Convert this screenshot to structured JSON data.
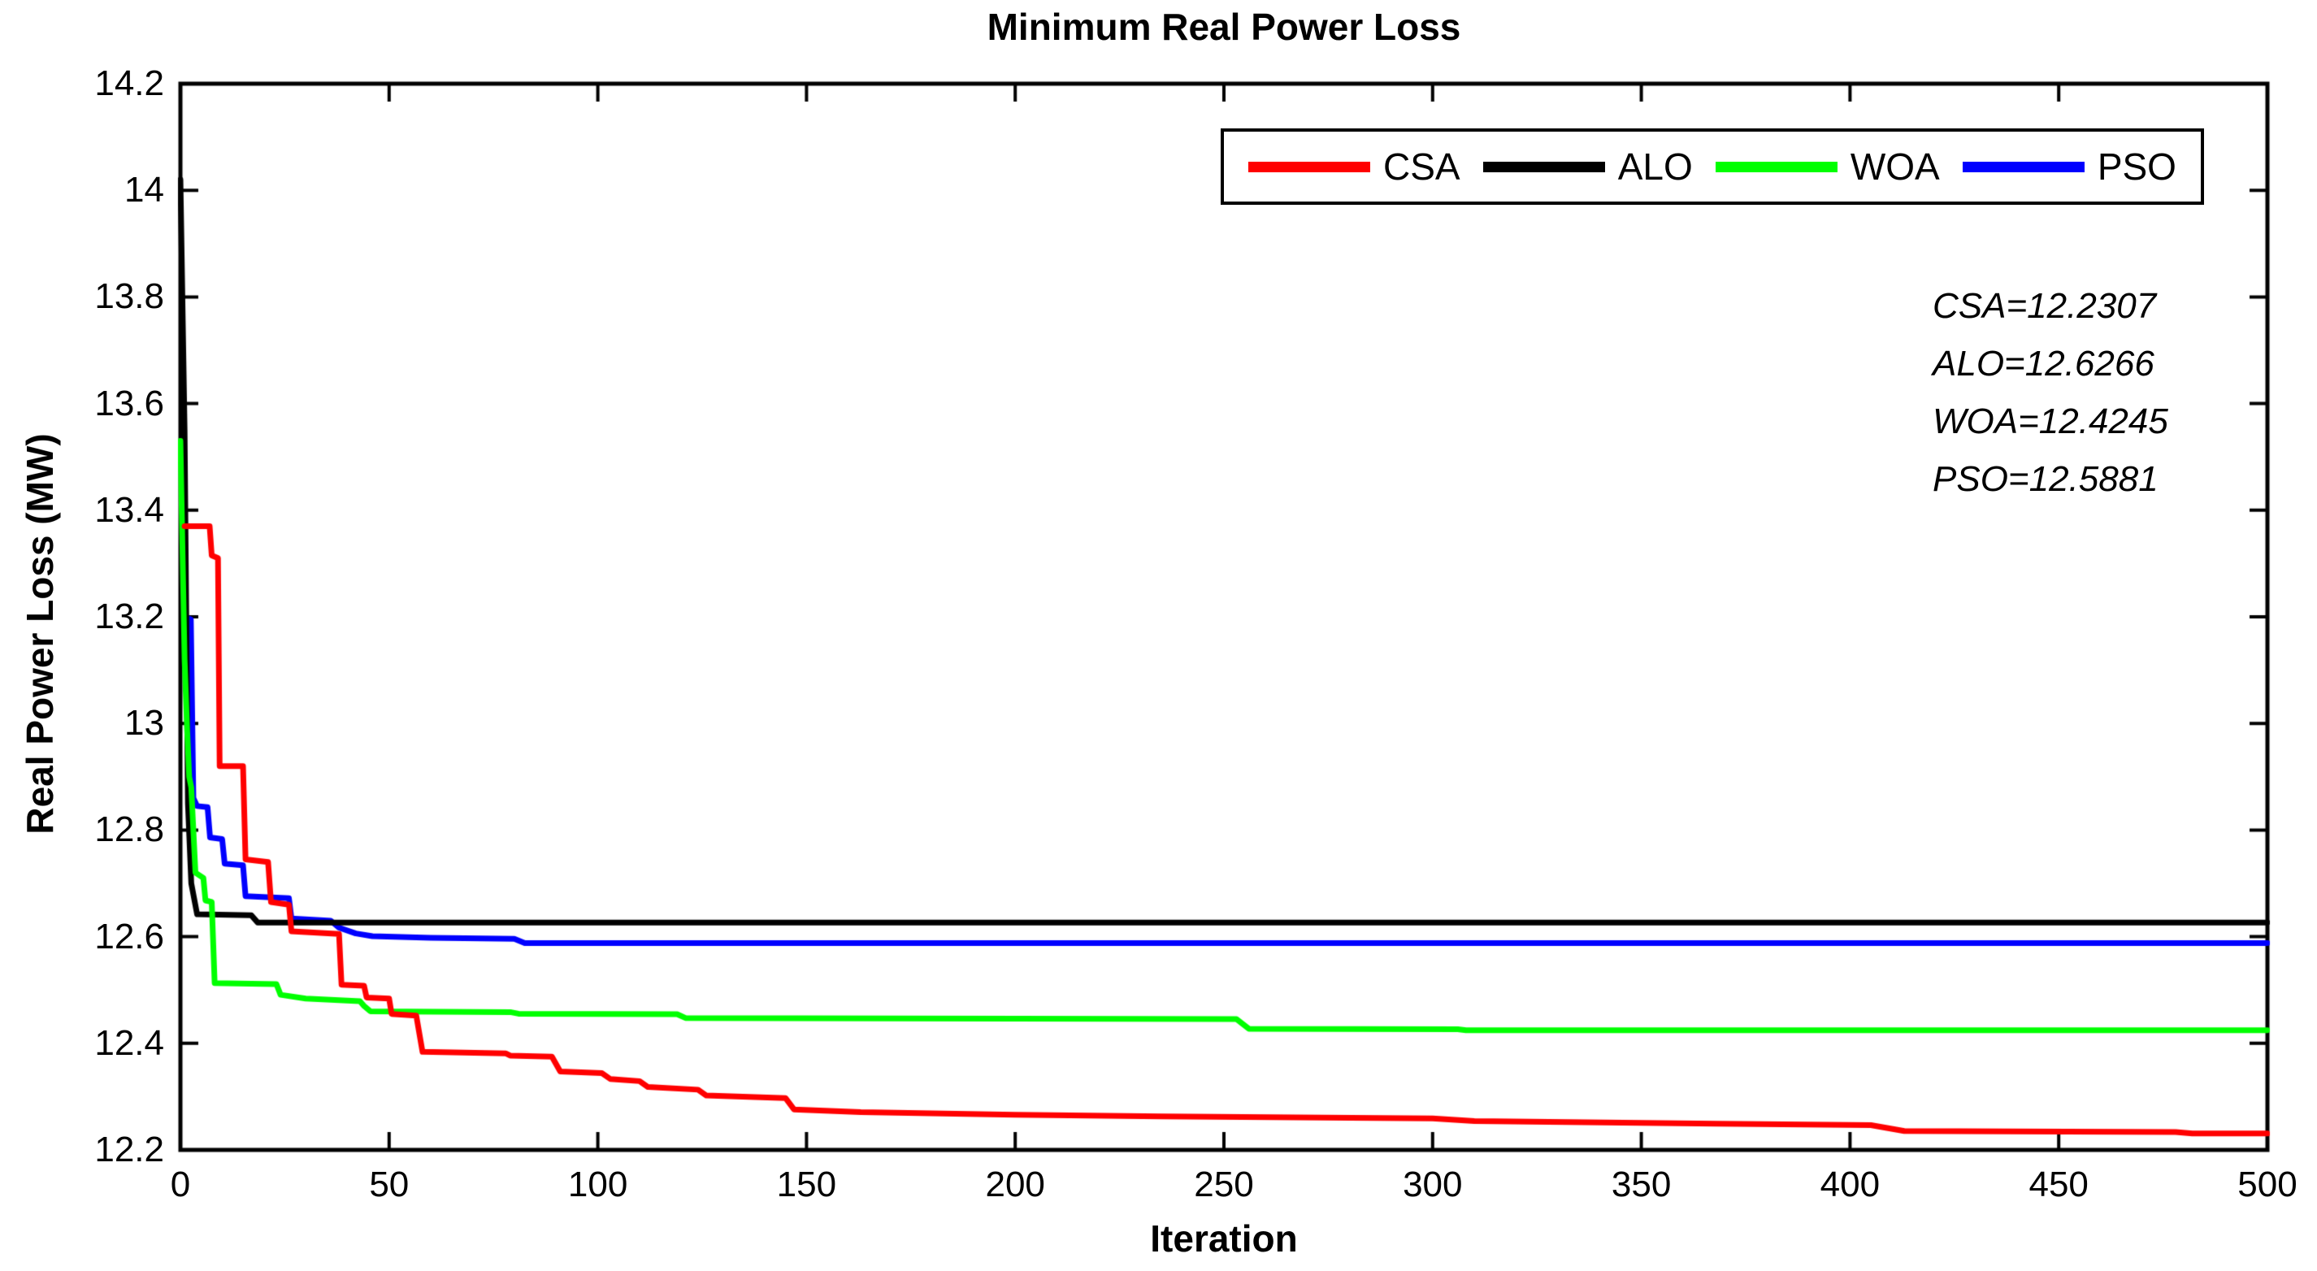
{
  "title": "Minimum Real Power Loss",
  "axes": {
    "xlabel": "Iteration",
    "ylabel": "Real Power Loss (MW)"
  },
  "annotation": {
    "lines": [
      "CSA=12.2307",
      "ALO=12.6266",
      "WOA=12.4245",
      "PSO=12.5881"
    ]
  },
  "chart_data": {
    "type": "line",
    "title": "Minimum Real Power Loss",
    "xlabel": "Iteration",
    "ylabel": "Real Power Loss (MW)",
    "xlim": [
      0,
      500
    ],
    "ylim": [
      12.2,
      14.2
    ],
    "grid": false,
    "legend_position": "top-right-inside",
    "x_ticks": [
      0,
      50,
      100,
      150,
      200,
      250,
      300,
      350,
      400,
      450,
      500
    ],
    "x_tick_labels": [
      "0",
      "50",
      "100",
      "150",
      "200",
      "250",
      "300",
      "350",
      "400",
      "450",
      "500"
    ],
    "y_ticks": [
      12.2,
      12.4,
      12.6,
      12.8,
      13.0,
      13.2,
      13.4,
      13.6,
      13.8,
      14.0,
      14.2
    ],
    "y_tick_labels": [
      "12.2",
      "12.4",
      "12.6",
      "12.8",
      "13",
      "13.2",
      "13.4",
      "13.6",
      "13.8",
      "14",
      "14.2"
    ],
    "line_width": 7,
    "draw_order": [
      "PSO",
      "ALO",
      "WOA",
      "CSA"
    ],
    "series": [
      {
        "name": "CSA",
        "color": "#ff0000",
        "final_value": 12.2307,
        "points": [
          [
            1,
            13.37
          ],
          [
            7,
            13.37
          ],
          [
            7.5,
            13.315
          ],
          [
            9,
            13.31
          ],
          [
            9.4,
            12.92
          ],
          [
            15,
            12.92
          ],
          [
            15.6,
            12.745
          ],
          [
            21,
            12.74
          ],
          [
            21.7,
            12.665
          ],
          [
            26,
            12.66
          ],
          [
            26.6,
            12.61
          ],
          [
            38,
            12.605
          ],
          [
            38.6,
            12.51
          ],
          [
            44,
            12.508
          ],
          [
            44.6,
            12.486
          ],
          [
            50,
            12.484
          ],
          [
            50.6,
            12.455
          ],
          [
            56.5,
            12.452
          ],
          [
            58,
            12.384
          ],
          [
            78,
            12.381
          ],
          [
            79,
            12.377
          ],
          [
            89,
            12.375
          ],
          [
            91,
            12.347
          ],
          [
            101,
            12.344
          ],
          [
            103,
            12.333
          ],
          [
            110,
            12.329
          ],
          [
            112,
            12.318
          ],
          [
            124,
            12.313
          ],
          [
            126,
            12.302
          ],
          [
            145,
            12.297
          ],
          [
            147,
            12.276
          ],
          [
            163,
            12.271
          ],
          [
            200,
            12.266
          ],
          [
            235,
            12.263
          ],
          [
            300,
            12.259
          ],
          [
            310,
            12.254
          ],
          [
            368,
            12.249
          ],
          [
            405,
            12.2465
          ],
          [
            413,
            12.2355
          ],
          [
            478,
            12.2335
          ],
          [
            482,
            12.2307
          ],
          [
            500,
            12.2307
          ]
        ]
      },
      {
        "name": "ALO",
        "color": "#000000",
        "final_value": 12.6266,
        "points": [
          [
            0,
            14.02
          ],
          [
            1,
            13.55
          ],
          [
            1.8,
            12.85
          ],
          [
            2.6,
            12.7
          ],
          [
            4,
            12.642
          ],
          [
            17,
            12.64
          ],
          [
            18.5,
            12.6266
          ],
          [
            500,
            12.6266
          ]
        ]
      },
      {
        "name": "WOA",
        "color": "#00ff00",
        "final_value": 12.4245,
        "points": [
          [
            0,
            13.53
          ],
          [
            1,
            13.12
          ],
          [
            1.6,
            12.99
          ],
          [
            2.1,
            12.9
          ],
          [
            2.6,
            12.88
          ],
          [
            3.6,
            12.72
          ],
          [
            5.5,
            12.71
          ],
          [
            6,
            12.668
          ],
          [
            7.5,
            12.665
          ],
          [
            8.2,
            12.513
          ],
          [
            23,
            12.511
          ],
          [
            24,
            12.491
          ],
          [
            30,
            12.484
          ],
          [
            43,
            12.479
          ],
          [
            44,
            12.47
          ],
          [
            45.5,
            12.46
          ],
          [
            79,
            12.4585
          ],
          [
            81,
            12.4555
          ],
          [
            119,
            12.4545
          ],
          [
            121,
            12.4475
          ],
          [
            253,
            12.4455
          ],
          [
            256,
            12.427
          ],
          [
            306,
            12.4265
          ],
          [
            308,
            12.4245
          ],
          [
            500,
            12.4245
          ]
        ]
      },
      {
        "name": "PSO",
        "color": "#0000ff",
        "final_value": 12.5881,
        "points": [
          [
            1,
            13.2
          ],
          [
            2.5,
            13.195
          ],
          [
            3.1,
            12.86
          ],
          [
            4,
            12.845
          ],
          [
            6.5,
            12.843
          ],
          [
            7.1,
            12.786
          ],
          [
            10,
            12.783
          ],
          [
            10.6,
            12.737
          ],
          [
            15,
            12.734
          ],
          [
            15.6,
            12.676
          ],
          [
            26,
            12.672
          ],
          [
            26.6,
            12.634
          ],
          [
            36,
            12.63
          ],
          [
            38,
            12.617
          ],
          [
            42,
            12.606
          ],
          [
            46,
            12.601
          ],
          [
            60,
            12.598
          ],
          [
            80,
            12.596
          ],
          [
            82.5,
            12.5881
          ],
          [
            500,
            12.5881
          ]
        ]
      }
    ]
  },
  "colors": {
    "background": "#ffffff",
    "axis": "#000000",
    "text": "#000000"
  }
}
